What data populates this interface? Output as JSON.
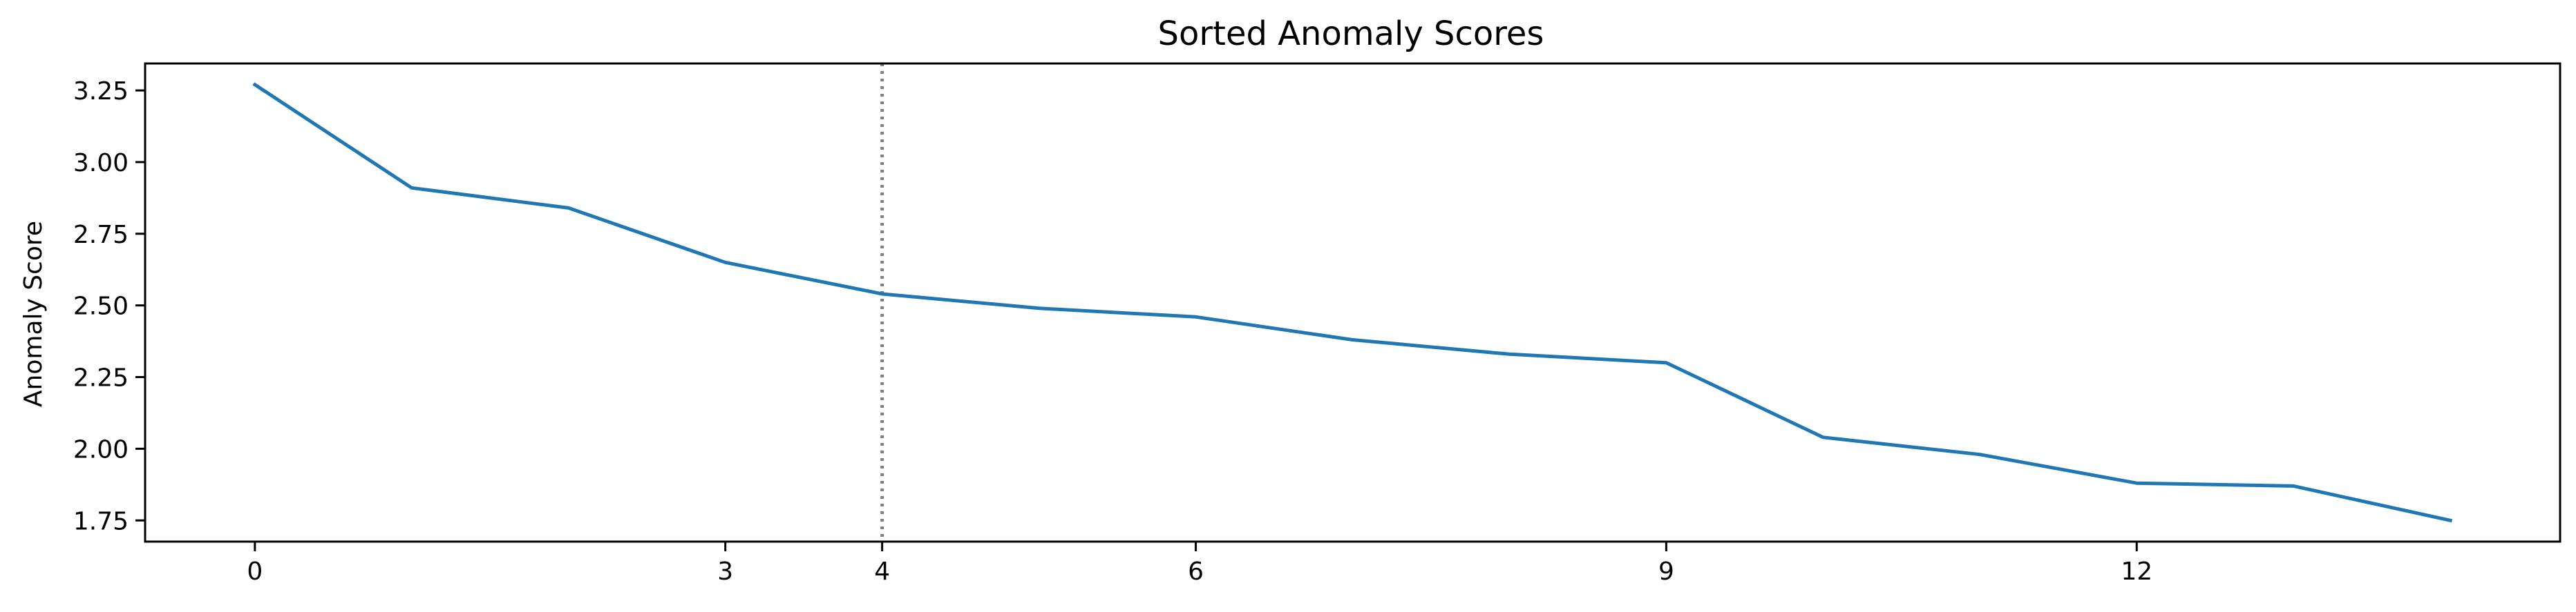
{
  "chart_data": {
    "type": "line",
    "title": "Sorted Anomaly Scores",
    "xlabel": "",
    "ylabel": "Anomaly Score",
    "x": [
      0,
      1,
      2,
      3,
      4,
      5,
      6,
      7,
      8,
      9,
      10,
      11,
      12,
      13,
      14
    ],
    "series": [
      {
        "values": [
          3.27,
          2.91,
          2.84,
          2.65,
          2.54,
          2.49,
          2.46,
          2.38,
          2.33,
          2.3,
          2.04,
          1.98,
          1.88,
          1.87,
          1.75
        ],
        "color": "#1f77b4"
      }
    ],
    "xlim": [
      -0.7,
      14.7
    ],
    "ylim": [
      1.676,
      3.344
    ],
    "xticks": [
      0,
      3,
      4,
      6,
      9,
      12
    ],
    "yticks": [
      1.75,
      2.0,
      2.25,
      2.5,
      2.75,
      3.0,
      3.25
    ],
    "ytick_labels": [
      "1.75",
      "2.00",
      "2.25",
      "2.50",
      "2.75",
      "3.00",
      "3.25"
    ],
    "vline": {
      "x": 4,
      "style": "dotted",
      "color": "#808080"
    },
    "grid": false,
    "legend": "none"
  }
}
